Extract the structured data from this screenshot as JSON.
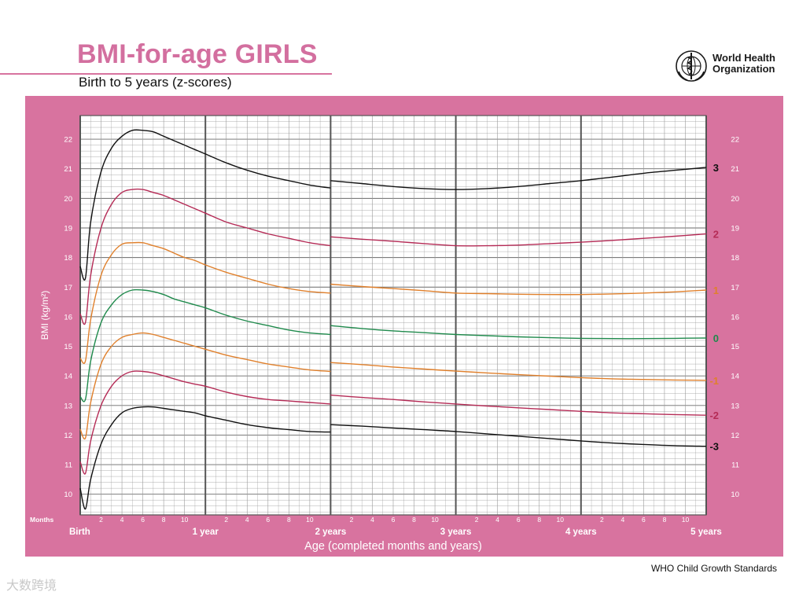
{
  "header": {
    "title": "BMI-for-age GIRLS",
    "subtitle": "Birth to 5 years (z-scores)"
  },
  "logo": {
    "org_line1": "World Health",
    "org_line2": "Organization",
    "icon": "who-emblem-icon"
  },
  "footer": {
    "text": "WHO Child Growth Standards"
  },
  "watermark": {
    "text": "大数跨境"
  },
  "colors": {
    "panel": "#d8739f",
    "title": "#d36f9f",
    "grid_major": "#6a6a6a",
    "grid_minor": "#9a9a9a",
    "z3": "#111111",
    "z2": "#b52b56",
    "z1": "#e0802c",
    "z0": "#1f8a4c"
  },
  "chart_data": {
    "type": "line",
    "title": "BMI-for-age GIRLS",
    "subtitle": "Birth to 5 years (z-scores)",
    "xlabel": "Age (completed months and years)",
    "ylabel": "BMI (kg/m²)",
    "xlim": [
      0,
      60
    ],
    "ylim": [
      9.3,
      22.8
    ],
    "months_label": "Months",
    "month_ticks": [
      "2",
      "4",
      "6",
      "8",
      "10"
    ],
    "year_labels": [
      {
        "month": 0,
        "label": "Birth"
      },
      {
        "month": 12,
        "label": "1 year"
      },
      {
        "month": 24,
        "label": "2 years"
      },
      {
        "month": 36,
        "label": "3 years"
      },
      {
        "month": 48,
        "label": "4 years"
      },
      {
        "month": 60,
        "label": "5 years"
      }
    ],
    "y_ticks": [
      10,
      11,
      12,
      13,
      14,
      15,
      16,
      17,
      18,
      19,
      20,
      21,
      22
    ],
    "grid": true,
    "series": [
      {
        "name": "3",
        "color": "#111111",
        "segments": [
          {
            "x": [
              0,
              0.5,
              1,
              2,
              3,
              4,
              5,
              6,
              7,
              8,
              9,
              10,
              11,
              12,
              14,
              16,
              18,
              20,
              22,
              24
            ],
            "y": [
              17.7,
              17.3,
              19.2,
              20.9,
              21.7,
              22.1,
              22.3,
              22.3,
              22.25,
              22.1,
              21.95,
              21.8,
              21.65,
              21.5,
              21.2,
              20.95,
              20.75,
              20.6,
              20.45,
              20.35
            ]
          },
          {
            "x": [
              24,
              27,
              30,
              33,
              36,
              39,
              42,
              45,
              48,
              51,
              54,
              57,
              60
            ],
            "y": [
              20.6,
              20.5,
              20.4,
              20.33,
              20.3,
              20.33,
              20.4,
              20.5,
              20.6,
              20.72,
              20.85,
              20.95,
              21.05
            ]
          }
        ]
      },
      {
        "name": "2",
        "color": "#b52b56",
        "segments": [
          {
            "x": [
              0,
              0.5,
              1,
              2,
              3,
              4,
              5,
              6,
              7,
              8,
              9,
              10,
              11,
              12,
              14,
              16,
              18,
              20,
              22,
              24
            ],
            "y": [
              16.1,
              15.8,
              17.4,
              19.0,
              19.8,
              20.2,
              20.3,
              20.3,
              20.2,
              20.1,
              19.95,
              19.8,
              19.65,
              19.5,
              19.2,
              19.0,
              18.8,
              18.65,
              18.5,
              18.4
            ]
          },
          {
            "x": [
              24,
              27,
              30,
              33,
              36,
              39,
              42,
              45,
              48,
              51,
              54,
              57,
              60
            ],
            "y": [
              18.7,
              18.62,
              18.55,
              18.47,
              18.4,
              18.4,
              18.42,
              18.47,
              18.52,
              18.58,
              18.65,
              18.72,
              18.8
            ]
          }
        ]
      },
      {
        "name": "1",
        "color": "#e0802c",
        "segments": [
          {
            "x": [
              0,
              0.5,
              1,
              2,
              3,
              4,
              5,
              6,
              7,
              8,
              9,
              10,
              11,
              12,
              14,
              16,
              18,
              20,
              22,
              24
            ],
            "y": [
              14.6,
              14.5,
              15.9,
              17.4,
              18.1,
              18.45,
              18.5,
              18.5,
              18.4,
              18.3,
              18.15,
              18.0,
              17.9,
              17.75,
              17.5,
              17.3,
              17.1,
              16.95,
              16.85,
              16.8
            ]
          },
          {
            "x": [
              24,
              27,
              30,
              33,
              36,
              39,
              42,
              45,
              48,
              51,
              54,
              57,
              60
            ],
            "y": [
              17.1,
              17.02,
              16.95,
              16.88,
              16.8,
              16.78,
              16.76,
              16.75,
              16.75,
              16.77,
              16.8,
              16.84,
              16.9
            ]
          }
        ]
      },
      {
        "name": "0",
        "color": "#1f8a4c",
        "segments": [
          {
            "x": [
              0,
              0.5,
              1,
              2,
              3,
              4,
              5,
              6,
              7,
              8,
              9,
              10,
              11,
              12,
              14,
              16,
              18,
              20,
              22,
              24
            ],
            "y": [
              13.3,
              13.2,
              14.5,
              15.8,
              16.4,
              16.75,
              16.9,
              16.9,
              16.85,
              16.75,
              16.6,
              16.5,
              16.4,
              16.3,
              16.05,
              15.85,
              15.7,
              15.55,
              15.45,
              15.4
            ]
          },
          {
            "x": [
              24,
              27,
              30,
              33,
              36,
              39,
              42,
              45,
              48,
              51,
              54,
              57,
              60
            ],
            "y": [
              15.7,
              15.6,
              15.52,
              15.46,
              15.4,
              15.36,
              15.32,
              15.29,
              15.27,
              15.26,
              15.26,
              15.27,
              15.28
            ]
          }
        ]
      },
      {
        "name": "-1",
        "color": "#e0802c",
        "segments": [
          {
            "x": [
              0,
              0.5,
              1,
              2,
              3,
              4,
              5,
              6,
              7,
              8,
              9,
              10,
              11,
              12,
              14,
              16,
              18,
              20,
              22,
              24
            ],
            "y": [
              12.2,
              11.9,
              13.1,
              14.4,
              15.0,
              15.3,
              15.4,
              15.45,
              15.4,
              15.3,
              15.2,
              15.1,
              15.0,
              14.9,
              14.7,
              14.55,
              14.4,
              14.3,
              14.2,
              14.15
            ]
          },
          {
            "x": [
              24,
              27,
              30,
              33,
              36,
              39,
              42,
              45,
              48,
              51,
              54,
              57,
              60
            ],
            "y": [
              14.45,
              14.38,
              14.3,
              14.23,
              14.16,
              14.1,
              14.04,
              13.99,
              13.94,
              13.9,
              13.88,
              13.86,
              13.85
            ]
          }
        ]
      },
      {
        "name": "-2",
        "color": "#b52b56",
        "segments": [
          {
            "x": [
              0,
              0.5,
              1,
              2,
              3,
              4,
              5,
              6,
              7,
              8,
              9,
              10,
              11,
              12,
              14,
              16,
              18,
              20,
              22,
              24
            ],
            "y": [
              11.1,
              10.7,
              11.8,
              13.0,
              13.65,
              14.0,
              14.15,
              14.15,
              14.1,
              14.0,
              13.9,
              13.8,
              13.72,
              13.65,
              13.45,
              13.3,
              13.2,
              13.15,
              13.1,
              13.05
            ]
          },
          {
            "x": [
              24,
              27,
              30,
              33,
              36,
              39,
              42,
              45,
              48,
              51,
              54,
              57,
              60
            ],
            "y": [
              13.35,
              13.27,
              13.2,
              13.12,
              13.05,
              12.98,
              12.92,
              12.86,
              12.8,
              12.75,
              12.72,
              12.69,
              12.67
            ]
          }
        ]
      },
      {
        "name": "-3",
        "color": "#111111",
        "segments": [
          {
            "x": [
              0,
              0.5,
              1,
              2,
              3,
              4,
              5,
              6,
              7,
              8,
              9,
              10,
              11,
              12,
              14,
              16,
              18,
              20,
              22,
              24
            ],
            "y": [
              10.2,
              9.5,
              10.5,
              11.7,
              12.35,
              12.75,
              12.9,
              12.95,
              12.95,
              12.9,
              12.85,
              12.8,
              12.75,
              12.65,
              12.5,
              12.35,
              12.25,
              12.18,
              12.12,
              12.1
            ]
          },
          {
            "x": [
              24,
              27,
              30,
              33,
              36,
              39,
              42,
              45,
              48,
              51,
              54,
              57,
              60
            ],
            "y": [
              12.35,
              12.3,
              12.24,
              12.18,
              12.12,
              12.04,
              11.96,
              11.88,
              11.8,
              11.73,
              11.68,
              11.64,
              11.62
            ]
          }
        ]
      }
    ]
  }
}
